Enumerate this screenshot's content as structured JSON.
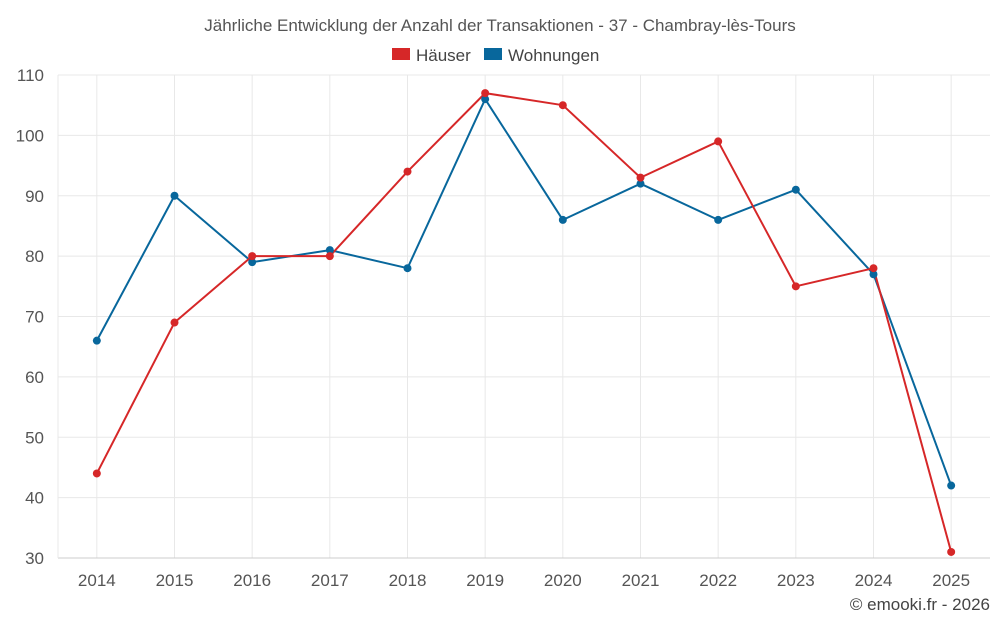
{
  "chart_data": {
    "type": "line",
    "title": "Jährliche Entwicklung der Anzahl der Transaktionen - 37 - Chambray-lès-Tours",
    "categories": [
      "2014",
      "2015",
      "2016",
      "2017",
      "2018",
      "2019",
      "2020",
      "2021",
      "2022",
      "2023",
      "2024",
      "2025"
    ],
    "series": [
      {
        "name": "Häuser",
        "color": "#d62728",
        "values": [
          44,
          69,
          80,
          80,
          94,
          107,
          105,
          93,
          99,
          75,
          78,
          31
        ]
      },
      {
        "name": "Wohnungen",
        "color": "#08679c",
        "values": [
          66,
          90,
          79,
          81,
          78,
          106,
          86,
          92,
          86,
          91,
          77,
          42
        ]
      }
    ],
    "ylim": [
      30,
      110
    ],
    "yticks": [
      30,
      40,
      50,
      60,
      70,
      80,
      90,
      100,
      110
    ],
    "xlabel": "",
    "ylabel": "",
    "grid": true,
    "legend": "top-center"
  },
  "credit": "© emooki.fr - 2026"
}
